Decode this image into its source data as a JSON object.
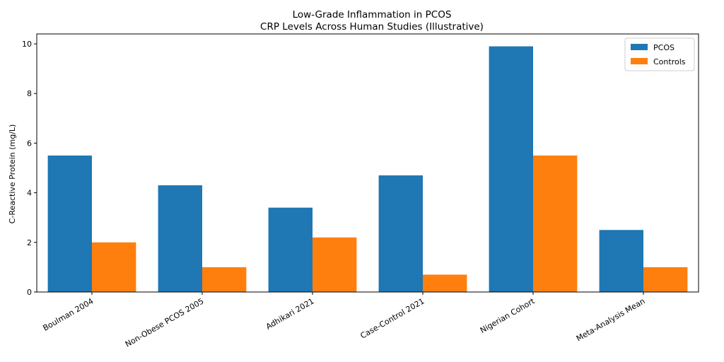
{
  "chart_data": {
    "type": "bar",
    "title": "Low-Grade Inflammation in PCOS",
    "subtitle": "CRP Levels Across Human Studies (Illustrative)",
    "xlabel": "",
    "ylabel": "C-Reactive Protein (mg/L)",
    "ylim": [
      0,
      10.4
    ],
    "yticks": [
      "0",
      "2",
      "4",
      "6",
      "8",
      "10"
    ],
    "categories": [
      "Boulman 2004",
      "Non-Obese PCOS 2005",
      "Adhikari 2021",
      "Case-Control 2021",
      "Nigerian Cohort",
      "Meta-Analysis Mean"
    ],
    "series": [
      {
        "name": "PCOS",
        "color": "#1f77b4",
        "values": [
          5.5,
          4.3,
          3.4,
          4.7,
          9.9,
          2.5
        ]
      },
      {
        "name": "Controls",
        "color": "#ff7f0e",
        "values": [
          2.0,
          1.0,
          2.2,
          0.7,
          5.5,
          1.0
        ]
      }
    ],
    "legend_position": "top-right",
    "grid": false
  }
}
